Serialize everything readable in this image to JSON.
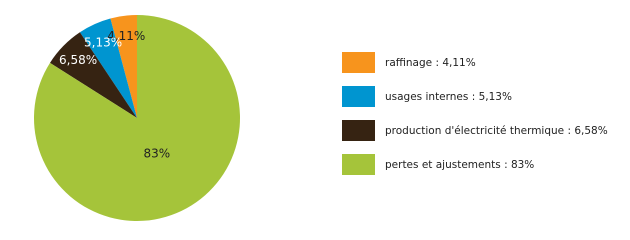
{
  "chart_data": {
    "type": "pie",
    "categories": [
      "raffinage : 4,11%",
      "usages internes : 5,13%",
      "production d'électricité thermique : 6,58%",
      "pertes et ajustements : 83%"
    ],
    "values": [
      4.11,
      5.13,
      6.58,
      83
    ],
    "value_labels": [
      "4,11%",
      "5,13%",
      "6,58%",
      "83%"
    ],
    "colors": [
      "#f7941d",
      "#0095d0",
      "#362312",
      "#a5c43a"
    ],
    "legend": "right"
  }
}
